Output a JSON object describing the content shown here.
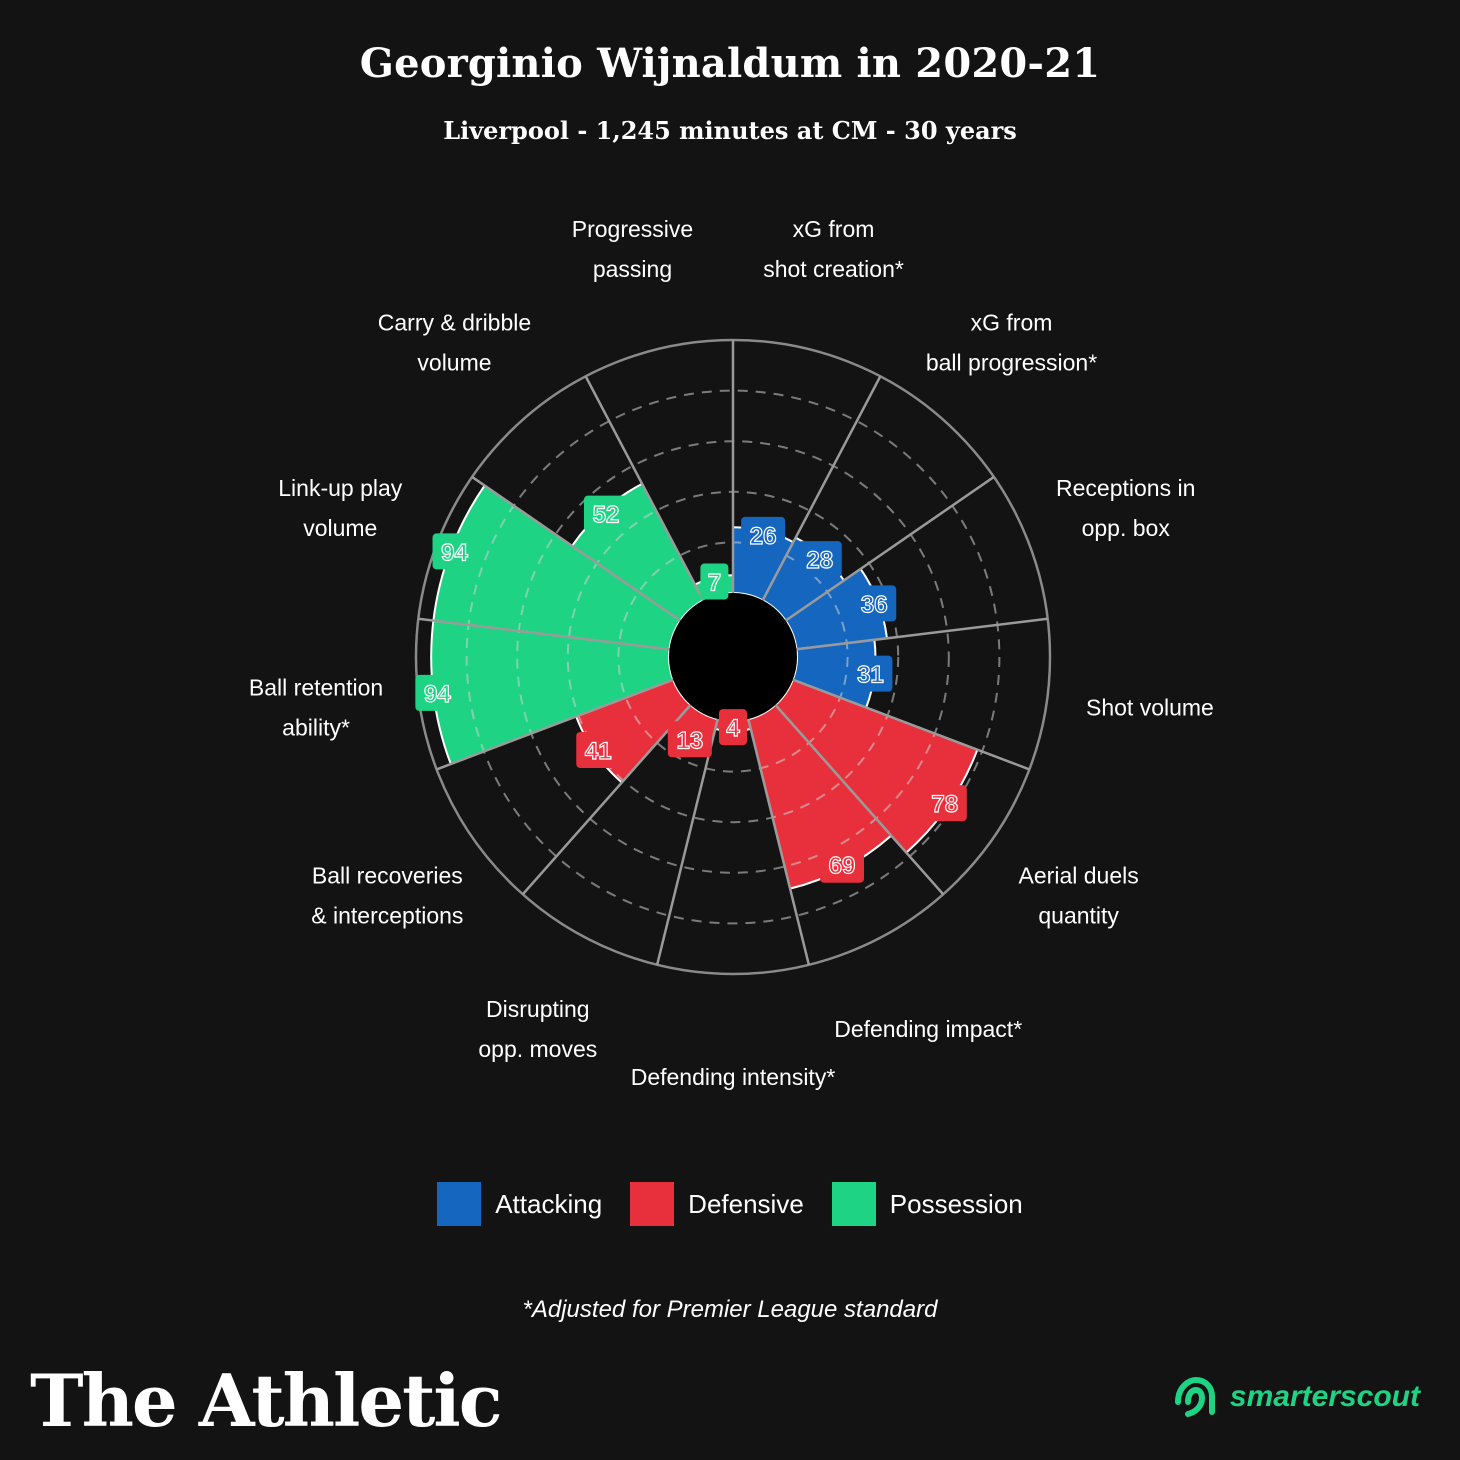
{
  "header": {
    "title": "Georginio Wijnaldum in 2020-21",
    "subtitle": "Liverpool - 1,245 minutes at CM - 30 years"
  },
  "chart_data": {
    "type": "polar-bar",
    "range": [
      0,
      100
    ],
    "grid": true,
    "gridlines": [
      20,
      40,
      60,
      80
    ],
    "colors": {
      "Attacking": "#1466be",
      "Defensive": "#e8303c",
      "Possession": "#1ed384"
    },
    "categories": [
      {
        "label": [
          "xG from",
          "shot creation*"
        ],
        "value": 26,
        "group": "Attacking"
      },
      {
        "label": [
          "xG from",
          "ball progression*"
        ],
        "value": 28,
        "group": "Attacking"
      },
      {
        "label": [
          "Receptions in",
          "opp. box"
        ],
        "value": 36,
        "group": "Attacking"
      },
      {
        "label": [
          "Shot volume"
        ],
        "value": 31,
        "group": "Attacking"
      },
      {
        "label": [
          "Aerial duels",
          "quantity"
        ],
        "value": 78,
        "group": "Defensive"
      },
      {
        "label": [
          "Defending impact*"
        ],
        "value": 69,
        "group": "Defensive"
      },
      {
        "label": [
          "Defending intensity*"
        ],
        "value": 4,
        "group": "Defensive"
      },
      {
        "label": [
          "Disrupting",
          "opp. moves"
        ],
        "value": 13,
        "group": "Defensive"
      },
      {
        "label": [
          "Ball recoveries",
          "& interceptions"
        ],
        "value": 41,
        "group": "Defensive"
      },
      {
        "label": [
          "Ball retention",
          "ability*"
        ],
        "value": 94,
        "group": "Possession"
      },
      {
        "label": [
          "Link-up play",
          "volume"
        ],
        "value": 94,
        "group": "Possession"
      },
      {
        "label": [
          "Carry & dribble",
          "volume"
        ],
        "value": 52,
        "group": "Possession"
      },
      {
        "label": [
          "Progressive",
          "passing"
        ],
        "value": 7,
        "group": "Possession"
      }
    ]
  },
  "legend": [
    {
      "label": "Attacking",
      "color": "#1466be"
    },
    {
      "label": "Defensive",
      "color": "#e8303c"
    },
    {
      "label": "Possession",
      "color": "#1ed384"
    }
  ],
  "footnote": "*Adjusted for Premier League standard",
  "brand": {
    "name": "The Athletic",
    "partner": "smarterscout",
    "partner_color": "#1ed384"
  }
}
